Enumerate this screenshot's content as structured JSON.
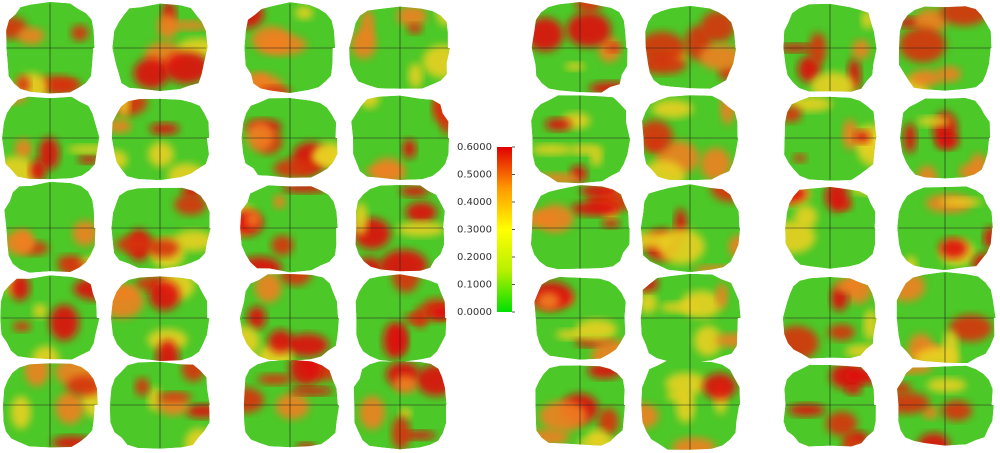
{
  "colorbar": {
    "range": [
      0,
      0.6
    ],
    "colors": [
      "#00e000",
      "#b8f000",
      "#ffff00",
      "#ff9900",
      "#e00000"
    ],
    "ticks": [
      {
        "value": 0.6,
        "label": "0.6000"
      },
      {
        "value": 0.5,
        "label": "0.5000"
      },
      {
        "value": 0.4,
        "label": "0.4000"
      },
      {
        "value": 0.3,
        "label": "0.3000"
      },
      {
        "value": 0.2,
        "label": "0.2000"
      },
      {
        "value": 0.1,
        "label": "0.1000"
      },
      {
        "value": 0,
        "label": "0.0000"
      }
    ]
  }
}
